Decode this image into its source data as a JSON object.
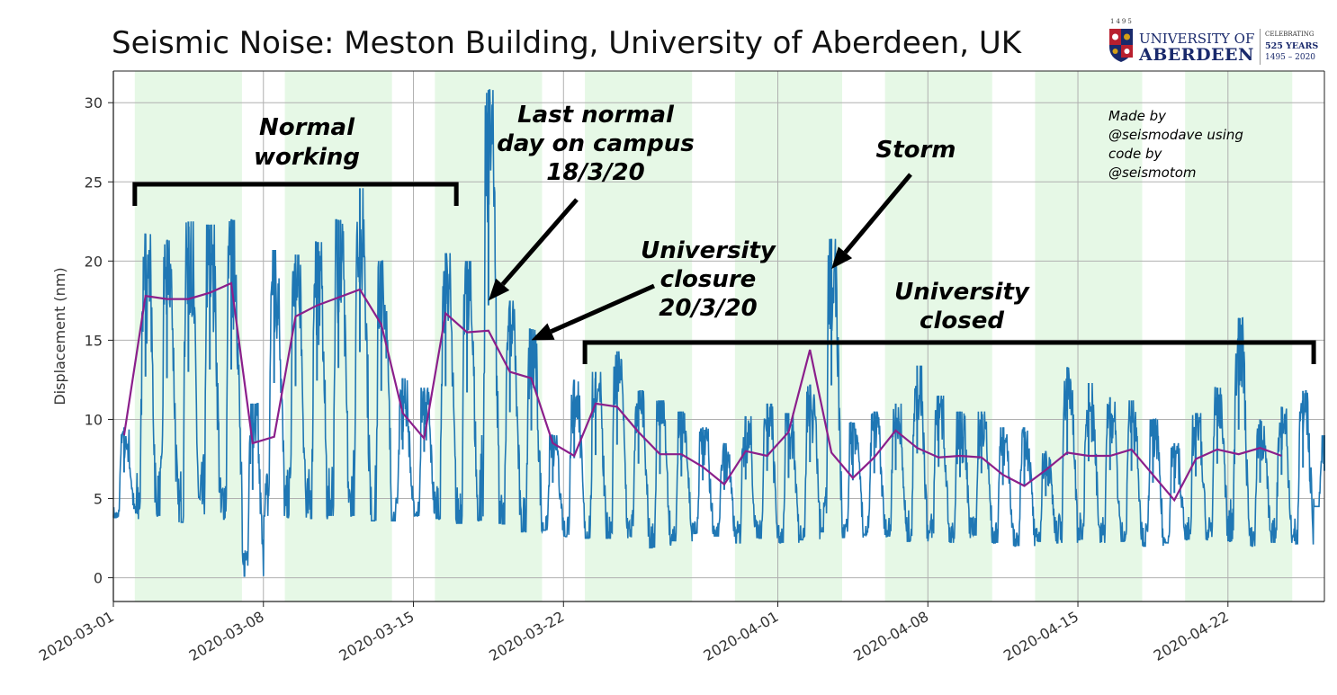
{
  "title": "Seismic Noise: Meston Building, University of Aberdeen, UK",
  "logo": {
    "year": "1495",
    "line1": "UNIVERSITY OF",
    "line2": "ABERDEEN",
    "celebrating": "CELEBRATING",
    "years": "525 YEARS",
    "span": "1495 – 2020",
    "colors": {
      "navy": "#1a2a6c",
      "red": "#b8202f",
      "gold": "#d4a017"
    }
  },
  "chart_data": {
    "type": "line",
    "title": "Seismic Noise: Meston Building, University of Aberdeen, UK",
    "xlabel": "",
    "ylabel": "Displacement (nm)",
    "xlim": [
      "2020-03-01",
      "2020-04-26T12:00"
    ],
    "ylim": [
      -1.5,
      32
    ],
    "yticks": [
      0,
      5,
      10,
      15,
      20,
      25,
      30
    ],
    "xticks": [
      "2020-03-01",
      "2020-03-08",
      "2020-03-15",
      "2020-03-22",
      "2020-04-01",
      "2020-04-08",
      "2020-04-15",
      "2020-04-22"
    ],
    "grid": true,
    "colors": {
      "signal": "#1f77b4",
      "average": "#8b1f8b",
      "weekday_band": "#e6f8e6"
    },
    "weekday_bands": [
      [
        "2020-03-02",
        "2020-03-07"
      ],
      [
        "2020-03-09",
        "2020-03-14"
      ],
      [
        "2020-03-16",
        "2020-03-21"
      ],
      [
        "2020-03-23",
        "2020-03-28"
      ],
      [
        "2020-03-30",
        "2020-04-04"
      ],
      [
        "2020-04-06",
        "2020-04-11"
      ],
      [
        "2020-04-13",
        "2020-04-18"
      ],
      [
        "2020-04-20",
        "2020-04-25"
      ]
    ],
    "daily_peaks": [
      [
        "2020-03-01",
        9.5
      ],
      [
        "2020-03-02",
        21.7
      ],
      [
        "2020-03-03",
        21.3
      ],
      [
        "2020-03-04",
        22.5
      ],
      [
        "2020-03-05",
        22.3
      ],
      [
        "2020-03-06",
        22.6
      ],
      [
        "2020-03-07",
        11.0
      ],
      [
        "2020-03-08",
        20.7
      ],
      [
        "2020-03-09",
        20.4
      ],
      [
        "2020-03-10",
        21.2
      ],
      [
        "2020-03-11",
        22.6
      ],
      [
        "2020-03-12",
        24.6
      ],
      [
        "2020-03-13",
        20.0
      ],
      [
        "2020-03-14",
        12.6
      ],
      [
        "2020-03-15",
        12.0
      ],
      [
        "2020-03-16",
        20.5
      ],
      [
        "2020-03-17",
        20.0
      ],
      [
        "2020-03-18",
        30.8
      ],
      [
        "2020-03-19",
        17.5
      ],
      [
        "2020-03-20",
        15.7
      ],
      [
        "2020-03-21",
        9.0
      ],
      [
        "2020-03-22",
        12.5
      ],
      [
        "2020-03-23",
        13.0
      ],
      [
        "2020-03-24",
        14.3
      ],
      [
        "2020-03-25",
        11.8
      ],
      [
        "2020-03-26",
        11.2
      ],
      [
        "2020-03-27",
        10.5
      ],
      [
        "2020-03-28",
        9.5
      ],
      [
        "2020-03-29",
        8.5
      ],
      [
        "2020-03-30",
        10.2
      ],
      [
        "2020-03-31",
        11.0
      ],
      [
        "2020-04-01",
        10.4
      ],
      [
        "2020-04-02",
        12.2
      ],
      [
        "2020-04-03",
        21.4
      ],
      [
        "2020-04-04",
        9.8
      ],
      [
        "2020-04-05",
        10.5
      ],
      [
        "2020-04-06",
        11.0
      ],
      [
        "2020-04-07",
        13.4
      ],
      [
        "2020-04-08",
        11.5
      ],
      [
        "2020-04-09",
        10.5
      ],
      [
        "2020-04-10",
        10.5
      ],
      [
        "2020-04-11",
        9.5
      ],
      [
        "2020-04-12",
        9.5
      ],
      [
        "2020-04-13",
        8.0
      ],
      [
        "2020-04-14",
        13.3
      ],
      [
        "2020-04-15",
        12.3
      ],
      [
        "2020-04-16",
        11.4
      ],
      [
        "2020-04-17",
        11.2
      ],
      [
        "2020-04-18",
        10.0
      ],
      [
        "2020-04-19",
        8.5
      ],
      [
        "2020-04-20",
        10.4
      ],
      [
        "2020-04-21",
        12.0
      ],
      [
        "2020-04-22",
        16.4
      ],
      [
        "2020-04-23",
        10.0
      ],
      [
        "2020-04-24",
        10.8
      ],
      [
        "2020-04-25",
        11.8
      ],
      [
        "2020-04-26",
        9.0
      ]
    ],
    "daily_troughs": [
      [
        "2020-03-01",
        3.8
      ],
      [
        "2020-03-02",
        3.7
      ],
      [
        "2020-03-03",
        3.9
      ],
      [
        "2020-03-04",
        3.5
      ],
      [
        "2020-03-05",
        4.0
      ],
      [
        "2020-03-06",
        3.7
      ],
      [
        "2020-03-07",
        0.1
      ],
      [
        "2020-03-08",
        3.9
      ],
      [
        "2020-03-09",
        3.8
      ],
      [
        "2020-03-10",
        3.7
      ],
      [
        "2020-03-11",
        3.9
      ],
      [
        "2020-03-12",
        3.9
      ],
      [
        "2020-03-13",
        3.6
      ],
      [
        "2020-03-14",
        3.6
      ],
      [
        "2020-03-15",
        3.9
      ],
      [
        "2020-03-16",
        3.7
      ],
      [
        "2020-03-17",
        3.4
      ],
      [
        "2020-03-18",
        3.6
      ],
      [
        "2020-03-19",
        3.4
      ],
      [
        "2020-03-20",
        2.9
      ],
      [
        "2020-03-21",
        3.0
      ],
      [
        "2020-03-22",
        2.6
      ],
      [
        "2020-03-23",
        2.5
      ],
      [
        "2020-03-24",
        2.5
      ],
      [
        "2020-03-25",
        2.6
      ],
      [
        "2020-03-26",
        1.9
      ],
      [
        "2020-03-27",
        2.3
      ],
      [
        "2020-03-28",
        2.8
      ],
      [
        "2020-03-29",
        2.6
      ],
      [
        "2020-03-30",
        2.2
      ],
      [
        "2020-03-31",
        2.5
      ],
      [
        "2020-04-01",
        2.2
      ],
      [
        "2020-04-02",
        2.4
      ],
      [
        "2020-04-03",
        2.9
      ],
      [
        "2020-04-04",
        2.5
      ],
      [
        "2020-04-05",
        2.7
      ],
      [
        "2020-04-06",
        2.6
      ],
      [
        "2020-04-07",
        2.3
      ],
      [
        "2020-04-08",
        2.5
      ],
      [
        "2020-04-09",
        2.2
      ],
      [
        "2020-04-10",
        2.7
      ],
      [
        "2020-04-11",
        2.2
      ],
      [
        "2020-04-12",
        2.0
      ],
      [
        "2020-04-13",
        2.3
      ],
      [
        "2020-04-14",
        2.2
      ],
      [
        "2020-04-15",
        2.4
      ],
      [
        "2020-04-16",
        2.2
      ],
      [
        "2020-04-17",
        2.3
      ],
      [
        "2020-04-18",
        2.0
      ],
      [
        "2020-04-19",
        2.2
      ],
      [
        "2020-04-20",
        2.4
      ],
      [
        "2020-04-21",
        2.4
      ],
      [
        "2020-04-22",
        2.3
      ],
      [
        "2020-04-23",
        2.0
      ],
      [
        "2020-04-24",
        2.2
      ],
      [
        "2020-04-25",
        2.1
      ],
      [
        "2020-04-26",
        4.5
      ]
    ],
    "series": [
      {
        "name": "",
        "values": [
          [
            "2020-03-01",
            9.0
          ],
          [
            "2020-03-02",
            17.8
          ],
          [
            "2020-03-03",
            17.6
          ],
          [
            "2020-03-04",
            17.6
          ],
          [
            "2020-03-05",
            18.0
          ],
          [
            "2020-03-06",
            18.6
          ],
          [
            "2020-03-07",
            8.5
          ],
          [
            "2020-03-08",
            8.9
          ],
          [
            "2020-03-09",
            16.5
          ],
          [
            "2020-03-10",
            17.2
          ],
          [
            "2020-03-11",
            17.7
          ],
          [
            "2020-03-12",
            18.2
          ],
          [
            "2020-03-13",
            16.0
          ],
          [
            "2020-03-14",
            10.4
          ],
          [
            "2020-03-15",
            8.8
          ],
          [
            "2020-03-16",
            16.7
          ],
          [
            "2020-03-17",
            15.5
          ],
          [
            "2020-03-18",
            15.6
          ],
          [
            "2020-03-19",
            13.0
          ],
          [
            "2020-03-20",
            12.6
          ],
          [
            "2020-03-21",
            8.5
          ],
          [
            "2020-03-22",
            7.7
          ],
          [
            "2020-03-23",
            11.0
          ],
          [
            "2020-03-24",
            10.8
          ],
          [
            "2020-03-25",
            9.2
          ],
          [
            "2020-03-26",
            7.8
          ],
          [
            "2020-03-27",
            7.8
          ],
          [
            "2020-03-28",
            7.0
          ],
          [
            "2020-03-29",
            5.9
          ],
          [
            "2020-03-30",
            8.0
          ],
          [
            "2020-03-31",
            7.7
          ],
          [
            "2020-04-01",
            9.2
          ],
          [
            "2020-04-02",
            14.4
          ],
          [
            "2020-04-03",
            7.9
          ],
          [
            "2020-04-04",
            6.3
          ],
          [
            "2020-04-05",
            7.6
          ],
          [
            "2020-04-06",
            9.3
          ],
          [
            "2020-04-07",
            8.2
          ],
          [
            "2020-04-08",
            7.6
          ],
          [
            "2020-04-09",
            7.7
          ],
          [
            "2020-04-10",
            7.6
          ],
          [
            "2020-04-11",
            6.5
          ],
          [
            "2020-04-12",
            5.8
          ],
          [
            "2020-04-13",
            6.8
          ],
          [
            "2020-04-14",
            7.9
          ],
          [
            "2020-04-15",
            7.7
          ],
          [
            "2020-04-16",
            7.7
          ],
          [
            "2020-04-17",
            8.1
          ],
          [
            "2020-04-18",
            6.5
          ],
          [
            "2020-04-19",
            4.9
          ],
          [
            "2020-04-20",
            7.5
          ],
          [
            "2020-04-21",
            8.1
          ],
          [
            "2020-04-22",
            7.8
          ],
          [
            "2020-04-23",
            8.2
          ],
          [
            "2020-04-24",
            7.7
          ]
        ]
      }
    ],
    "annotations": [
      {
        "lines": [
          "Normal",
          "working"
        ],
        "bracket": [
          "2020-03-02",
          "2020-03-17"
        ]
      },
      {
        "lines": [
          "Last normal",
          "day on campus",
          "18/3/20"
        ],
        "arrow_to": [
          "2020-03-18",
          17.5
        ]
      },
      {
        "lines": [
          "University",
          "closure",
          "20/3/20"
        ],
        "arrow_to": [
          "2020-03-20",
          15.0
        ]
      },
      {
        "lines": [
          "Storm"
        ],
        "arrow_to": [
          "2020-04-03",
          19.5
        ]
      },
      {
        "lines": [
          "University",
          "closed"
        ],
        "bracket": [
          "2020-03-23",
          "2020-04-26"
        ]
      }
    ],
    "credit": [
      "Made by",
      "@seismodave using",
      "code by",
      "@seismotom"
    ]
  }
}
